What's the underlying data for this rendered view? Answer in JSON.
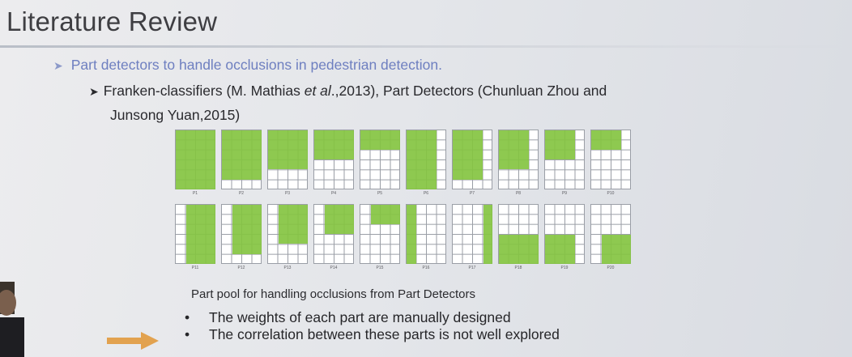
{
  "slide": {
    "title": "Literature Review",
    "bullet1": "Part detectors to handle occlusions in pedestrian detection.",
    "bullet2_a": "Franken-classifiers (M. Mathias ",
    "bullet2_et_al": "et al",
    "bullet2_b": ".,2013), Part Detectors (Chunluan Zhou and",
    "bullet2_c": "Junsong Yuan,2015)",
    "caption": "Part pool for handling occlusions from Part Detectors",
    "points": [
      "The weights of each part are manually designed",
      "The correlation between these parts is not well explored"
    ]
  },
  "part_pool": {
    "fill_color": "#84c441",
    "grid_color": "#9a9ea6",
    "labels_row1": [
      "P1",
      "P2",
      "P3",
      "P4",
      "P5",
      "P6",
      "P7",
      "P8",
      "P9",
      "P10"
    ],
    "labels_row2": [
      "P11",
      "P12",
      "P13",
      "P14",
      "P15",
      "P16",
      "P17",
      "P18",
      "P19",
      "P20"
    ]
  },
  "icons": {
    "bullet_marker": "chevron-right-icon",
    "pointer_arrow": "arrow-right-icon"
  }
}
